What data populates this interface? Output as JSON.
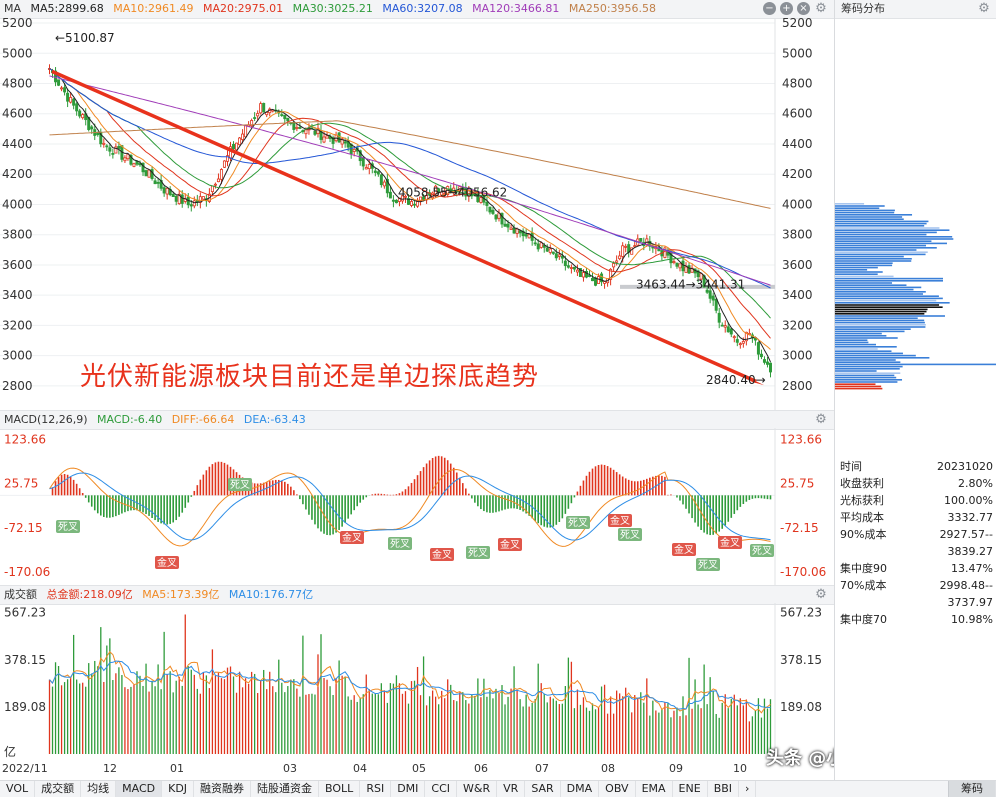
{
  "main": {
    "title": "MA",
    "indicators": [
      {
        "label": "MA5:2899.68",
        "color": "#222222"
      },
      {
        "label": "MA10:2961.49",
        "color": "#f08a24"
      },
      {
        "label": "MA20:2975.01",
        "color": "#e0351e"
      },
      {
        "label": "MA30:3025.21",
        "color": "#2e9b3a"
      },
      {
        "label": "MA60:3207.08",
        "color": "#2457d6"
      },
      {
        "label": "MA120:3466.81",
        "color": "#a03cb8"
      },
      {
        "label": "MA250:3956.58",
        "color": "#c0804a"
      }
    ],
    "y_labels": [
      "5200",
      "5000",
      "4800",
      "4600",
      "4400",
      "4200",
      "4000",
      "3800",
      "3600",
      "3400",
      "3200",
      "3000",
      "2800"
    ],
    "annotations": {
      "high": "←5100.87",
      "mid1": "4058.55→4056.62",
      "mid2": "3463.44→3441.31",
      "low": "2840.40→"
    },
    "caption": "光伏新能源板块目前还是单边探底趋势"
  },
  "macd": {
    "title": "MACD(12,26,9)",
    "indicators": [
      {
        "label": "MACD:-6.40",
        "color": "#2e9b3a"
      },
      {
        "label": "DIFF:-66.64",
        "color": "#f08a24"
      },
      {
        "label": "DEA:-63.43",
        "color": "#2e8ee6"
      }
    ],
    "y_labels": [
      "123.66",
      "25.75",
      "-72.15",
      "-170.06"
    ],
    "cross_gold": "金叉",
    "cross_dead": "死叉"
  },
  "volume": {
    "title": "成交额",
    "indicators": [
      {
        "label": "总金额:218.09亿",
        "color": "#e0351e"
      },
      {
        "label": "MA5:173.39亿",
        "color": "#f08a24"
      },
      {
        "label": "MA10:176.77亿",
        "color": "#2e8ee6"
      }
    ],
    "y_labels": [
      "567.23",
      "378.15",
      "189.08"
    ],
    "unit": "亿"
  },
  "dates": [
    "2022/11",
    "12",
    "01",
    "03",
    "04",
    "05",
    "06",
    "07",
    "08",
    "09",
    "10"
  ],
  "sidebar": {
    "title": "筹码分布",
    "stats": [
      {
        "k": "时间",
        "v": "20231020"
      },
      {
        "k": "收盘获利",
        "v": "2.80%"
      },
      {
        "k": "光标获利",
        "v": "100.00%"
      },
      {
        "k": "平均成本",
        "v": "3332.77"
      },
      {
        "k": "90%成本",
        "v": "2927.57--"
      },
      {
        "k": "",
        "v": "3839.27"
      },
      {
        "k": "集中度90",
        "v": "13.47%"
      },
      {
        "k": "70%成本",
        "v": "2998.48--"
      },
      {
        "k": "",
        "v": "3737.97"
      },
      {
        "k": "集中度70",
        "v": "10.98%"
      }
    ]
  },
  "tabs": [
    "VOL",
    "成交额",
    "均线",
    "MACD",
    "KDJ",
    "融资融券",
    "陆股通资金",
    "BOLL",
    "RSI",
    "DMI",
    "CCI",
    "W&R",
    "VR",
    "SAR",
    "DMA",
    "OBV",
    "EMA",
    "ENE",
    "BBI",
    "›",
    "筹码"
  ],
  "active_tab": "MACD",
  "watermark": "头条 @小高理财V",
  "colors": {
    "up": "#e0351e",
    "down": "#2e9b3a",
    "arrow": "#e8321c"
  }
}
